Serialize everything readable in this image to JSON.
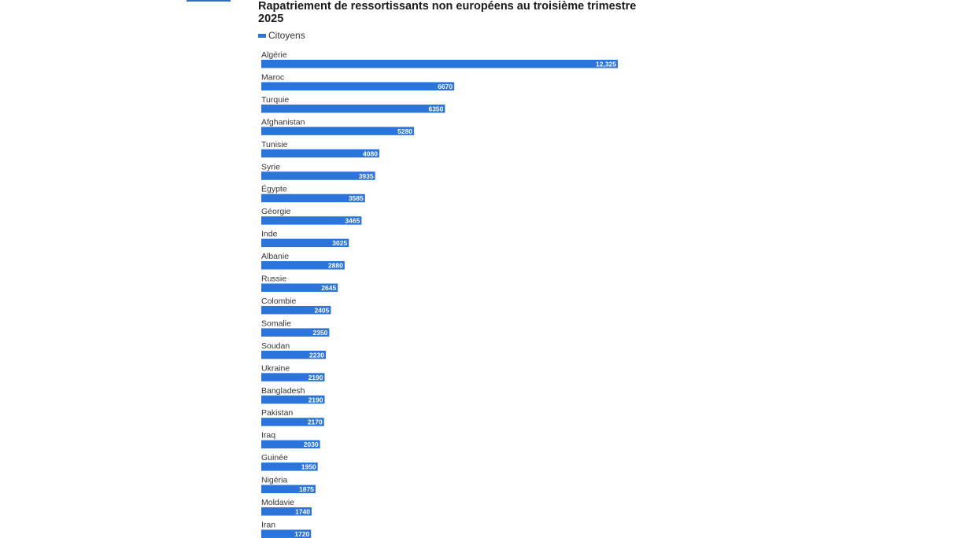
{
  "title": "Rapatriement de ressortissants non européens au troisième trimestre 2025",
  "legend": {
    "label": "Citoyens"
  },
  "colors": {
    "bar": "#2a74db",
    "accent": "#2f6fc6"
  },
  "chart_data": {
    "type": "bar",
    "orientation": "horizontal",
    "title": "Rapatriement de ressortissants non européens au troisième trimestre 2025",
    "xlabel": "",
    "ylabel": "",
    "grid": false,
    "legend_position": "top-left",
    "categories": [
      "Algérie",
      "Maroc",
      "Turquie",
      "Afghanistan",
      "Tunisie",
      "Syrie",
      "Égypte",
      "Géorgie",
      "Inde",
      "Albanie",
      "Russie",
      "Colombie",
      "Somalie",
      "Soudan",
      "Ukraine",
      "Bangladesh",
      "Pakistan",
      "Iraq",
      "Guinée",
      "Nigéria",
      "Moldavie",
      "Iran"
    ],
    "series": [
      {
        "name": "Citoyens",
        "values": [
          12325,
          6670,
          6350,
          5280,
          4080,
          3935,
          3585,
          3465,
          3025,
          2880,
          2645,
          2405,
          2350,
          2230,
          2190,
          2190,
          2170,
          2030,
          1950,
          1875,
          1740,
          1720
        ],
        "labels": [
          "12,325",
          "6670",
          "6350",
          "5280",
          "4080",
          "3935",
          "3585",
          "3465",
          "3025",
          "2880",
          "2645",
          "2405",
          "2350",
          "2230",
          "2190",
          "2190",
          "2170",
          "2030",
          "1950",
          "1875",
          "1740",
          "1720"
        ]
      }
    ]
  }
}
